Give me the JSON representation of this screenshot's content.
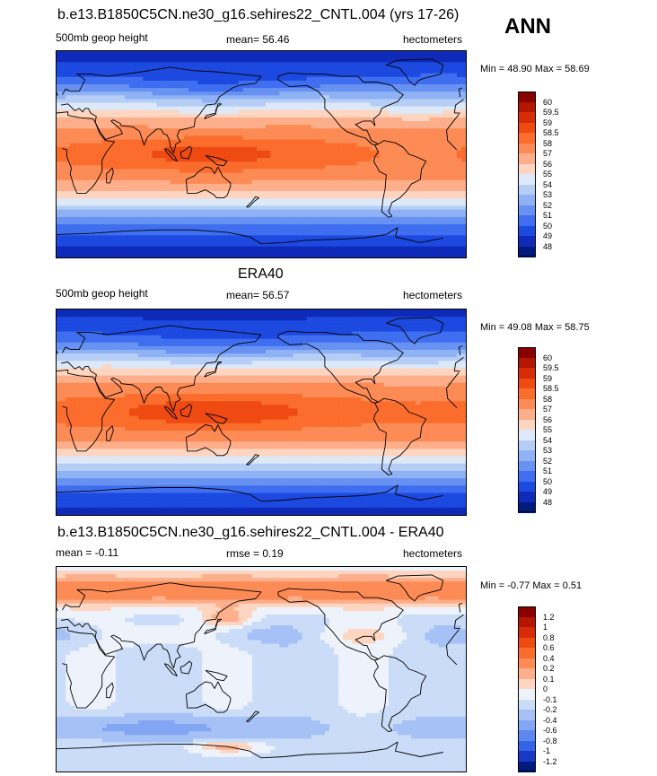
{
  "season": "ANN",
  "chart_data": [
    {
      "type": "heatmap",
      "title": "b.e13.B1850C5CN.ne30_g16.sehires22_CNTL.004 (yrs 17-26)",
      "variable": "500mb geop height",
      "mean_label": "mean=  56.46",
      "units": "hectometers",
      "minmax": "Min =  48.90 Max =  58.69",
      "levels": [
        "60",
        "59.5",
        "59",
        "58.5",
        "58",
        "57",
        "56",
        "55",
        "54",
        "53",
        "52",
        "51",
        "50",
        "49",
        "48"
      ],
      "colors": [
        "#8b0000",
        "#b41600",
        "#d82c06",
        "#ee4a12",
        "#fb6d2c",
        "#fc8b55",
        "#fdae8a",
        "#fdd5c0",
        "#dde9f8",
        "#b6cef6",
        "#8fb2f5",
        "#6892f2",
        "#3f6ef0",
        "#1c49e0",
        "#0f2ab8",
        "#001a80"
      ],
      "data_range": [
        48.9,
        58.69
      ],
      "mean": 56.46
    },
    {
      "type": "heatmap",
      "title": "ERA40",
      "variable": "500mb geop height",
      "mean_label": "mean=  56.57",
      "units": "hectometers",
      "minmax": "Min =  49.08 Max =  58.75",
      "levels": [
        "60",
        "59.5",
        "59",
        "58.5",
        "58",
        "57",
        "56",
        "55",
        "54",
        "53",
        "52",
        "51",
        "50",
        "49",
        "48"
      ],
      "colors": [
        "#8b0000",
        "#b41600",
        "#d82c06",
        "#ee4a12",
        "#fb6d2c",
        "#fc8b55",
        "#fdae8a",
        "#fdd5c0",
        "#dde9f8",
        "#b6cef6",
        "#8fb2f5",
        "#6892f2",
        "#3f6ef0",
        "#1c49e0",
        "#0f2ab8",
        "#001a80"
      ],
      "data_range": [
        49.08,
        58.75
      ],
      "mean": 56.57
    },
    {
      "type": "heatmap",
      "title": "b.e13.B1850C5CN.ne30_g16.sehires22_CNTL.004 - ERA40",
      "mean_label": "mean =  -0.11",
      "rmse_label": "rmse =   0.19",
      "units": "hectometers",
      "minmax": "Min =  -0.77 Max =   0.51",
      "levels": [
        "1.2",
        "1",
        "0.8",
        "0.6",
        "0.4",
        "0.2",
        "0.1",
        "0",
        "-0.1",
        "-0.2",
        "-0.4",
        "-0.6",
        "-0.8",
        "-1",
        "-1.2"
      ],
      "colors": [
        "#8b0000",
        "#b41600",
        "#d82c06",
        "#ee4a12",
        "#fb6d2c",
        "#fc8b55",
        "#fdae8a",
        "#fdd5c0",
        "#eef3fb",
        "#cadcf7",
        "#a6c1f5",
        "#82a6f3",
        "#5c86f0",
        "#3563e8",
        "#1838c6",
        "#001a80"
      ],
      "data_range": [
        -0.77,
        0.51
      ],
      "mean": -0.11,
      "rmse": 0.19
    }
  ]
}
